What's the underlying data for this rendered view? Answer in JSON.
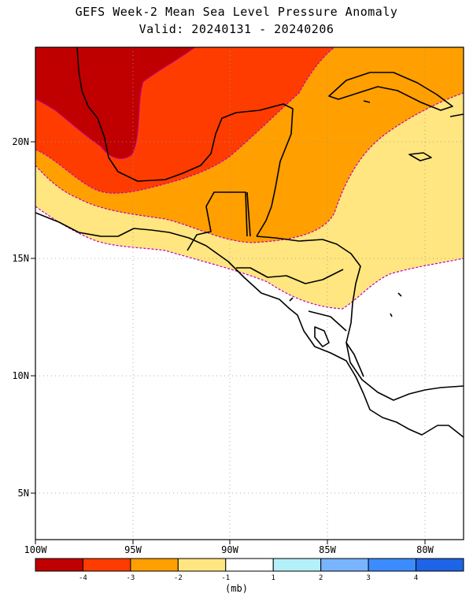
{
  "title": {
    "line1": "GEFS Week-2 Mean Sea Level Pressure Anomaly",
    "line2": "Valid: 20240131 - 20240206"
  },
  "map": {
    "lon_range": [
      -100,
      -78
    ],
    "lat_range": [
      3,
      24
    ],
    "x_tick_labels": [
      "100W",
      "95W",
      "90W",
      "85W",
      "80W"
    ],
    "y_tick_labels": [
      "20N",
      "15N",
      "10N",
      "5N"
    ],
    "grid": "dotted",
    "region": "Mexico, Central America and the Caribbean",
    "anomaly_zones_mb": [
      {
        "range": "< -4",
        "color": "#c00000"
      },
      {
        "range": "-4 to -3",
        "color": "#ff3c00"
      },
      {
        "range": "-3 to -2",
        "color": "#ff9f00"
      },
      {
        "range": "-2 to -1",
        "color": "#ffe680"
      },
      {
        "range": "> -1",
        "color": "#ffffff"
      }
    ],
    "contour_color": "#c000c0"
  },
  "colorbar": {
    "labels": [
      "-4",
      "-3",
      "-2",
      "-1",
      "1",
      "2",
      "3",
      "4"
    ],
    "colors": [
      "#c00000",
      "#ff3c00",
      "#ff9f00",
      "#ffe680",
      "#ffffff",
      "#b4f0fa",
      "#78b4ff",
      "#3c8cff",
      "#1e64e6"
    ],
    "units": "(mb)"
  }
}
